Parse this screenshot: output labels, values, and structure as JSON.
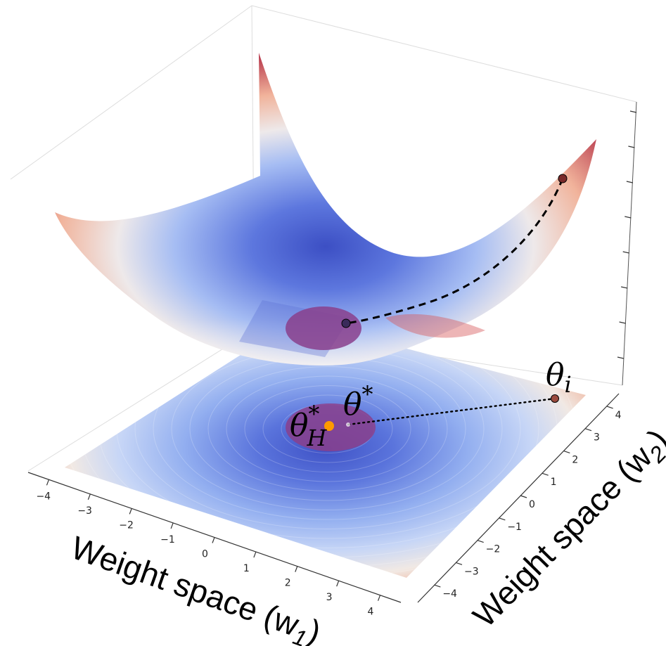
{
  "chart_data": {
    "type": "surface3d",
    "function": "quadratic bowl",
    "x": {
      "label_prefix": "Weight space (w",
      "label_sub": "1",
      "label_suffix": ")",
      "ticks": [
        -4,
        -3,
        -2,
        -1,
        0,
        1,
        2,
        3,
        4
      ],
      "range": [
        -4.5,
        4.5
      ]
    },
    "y": {
      "label_prefix": "Weight space (w",
      "label_sub": "2",
      "label_suffix": ")",
      "ticks": [
        -4,
        -3,
        -2,
        -1,
        0,
        1,
        2,
        3,
        4
      ],
      "range": [
        -4.5,
        4.5
      ]
    },
    "z": {
      "ticks_labeled": false
    },
    "colormap": "coolwarm",
    "annotations": {
      "theta_i": {
        "symbol": "θ",
        "sub": "i",
        "w1": 4.1,
        "w2": 4.1
      },
      "theta_star": {
        "symbol": "θ",
        "sup": "*",
        "w1": 0.2,
        "w2": 0.2
      },
      "theta_h_star": {
        "symbol": "θ",
        "sub": "H",
        "sup": "*",
        "w1": 0,
        "w2": 0
      }
    },
    "colors": {
      "high": "#b4374a",
      "mid": "#f2ebe6",
      "low": "#4a5fd0",
      "basin": "#8a3f8c",
      "optimum": "#ff9a00"
    }
  }
}
